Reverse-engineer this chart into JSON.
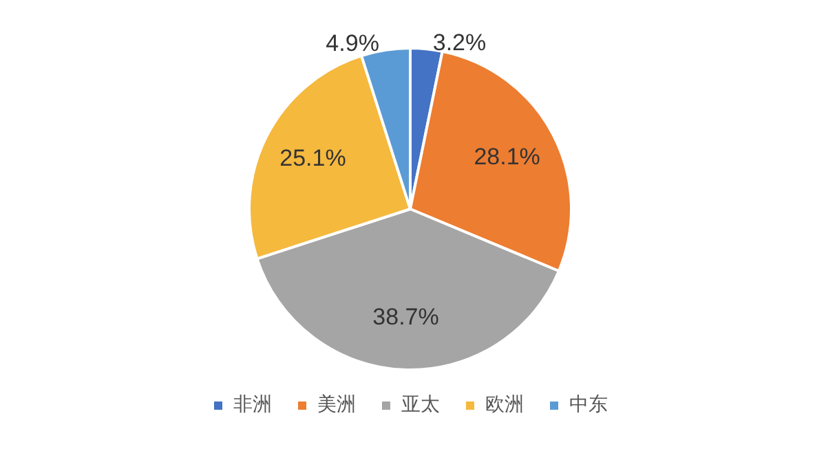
{
  "chart_data": {
    "type": "pie",
    "categories": [
      "非洲",
      "美洲",
      "亚太",
      "欧洲",
      "中东"
    ],
    "values": [
      3.2,
      28.1,
      38.7,
      25.1,
      4.9
    ],
    "value_labels": [
      "3.2%",
      "28.1%",
      "38.7%",
      "25.1%",
      "4.9%"
    ],
    "colors": [
      "#4472c4",
      "#ed7d31",
      "#a5a5a5",
      "#f5b93e",
      "#5b9bd5"
    ],
    "legend": "bottom"
  }
}
